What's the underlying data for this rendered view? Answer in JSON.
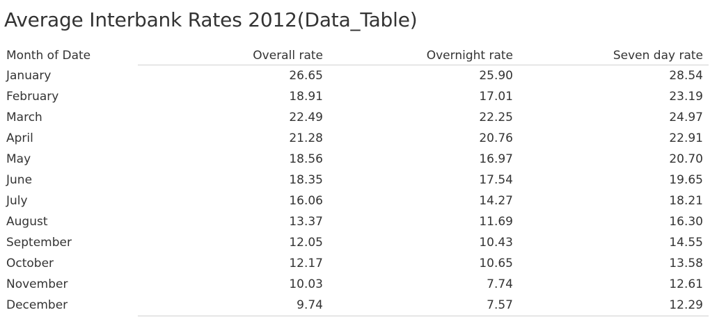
{
  "title": "Average Interbank Rates 2012(Data_Table)",
  "chart_data": {
    "type": "table",
    "title": "Average Interbank Rates 2012(Data_Table)",
    "columns": [
      "Month of Date",
      "Overall rate",
      "Overnight rate",
      "Seven day rate"
    ],
    "rows": [
      [
        "January",
        "26.65",
        "25.90",
        "28.54"
      ],
      [
        "February",
        "18.91",
        "17.01",
        "23.19"
      ],
      [
        "March",
        "22.49",
        "22.25",
        "24.97"
      ],
      [
        "April",
        "21.28",
        "20.76",
        "22.91"
      ],
      [
        "May",
        "18.56",
        "16.97",
        "20.70"
      ],
      [
        "June",
        "18.35",
        "17.54",
        "19.65"
      ],
      [
        "July",
        "16.06",
        "14.27",
        "18.21"
      ],
      [
        "August",
        "13.37",
        "11.69",
        "16.30"
      ],
      [
        "September",
        "12.05",
        "10.43",
        "14.55"
      ],
      [
        "October",
        "12.17",
        "10.65",
        "13.58"
      ],
      [
        "November",
        "10.03",
        "7.74",
        "12.61"
      ],
      [
        "December",
        "9.74",
        "7.57",
        "12.29"
      ]
    ]
  }
}
